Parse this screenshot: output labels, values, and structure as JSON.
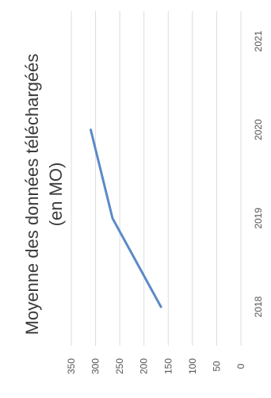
{
  "chart_data": {
    "type": "line",
    "title": "Moyenne des données téléchargéés (en MO)",
    "title_lines": [
      "Moyenne des données téléchargéés",
      "(en MO)"
    ],
    "orientation": "rotated-90-ccw",
    "categories": [
      "2018",
      "2019",
      "2020",
      "2021"
    ],
    "series": [
      {
        "values": [
          165,
          265,
          310,
          null
        ],
        "color": "#5b8ac7"
      }
    ],
    "value_ticks": [
      "0",
      "50",
      "100",
      "150",
      "200",
      "250",
      "300",
      "350"
    ],
    "ylim": [
      0,
      350
    ],
    "grid": true,
    "legend": "none"
  }
}
